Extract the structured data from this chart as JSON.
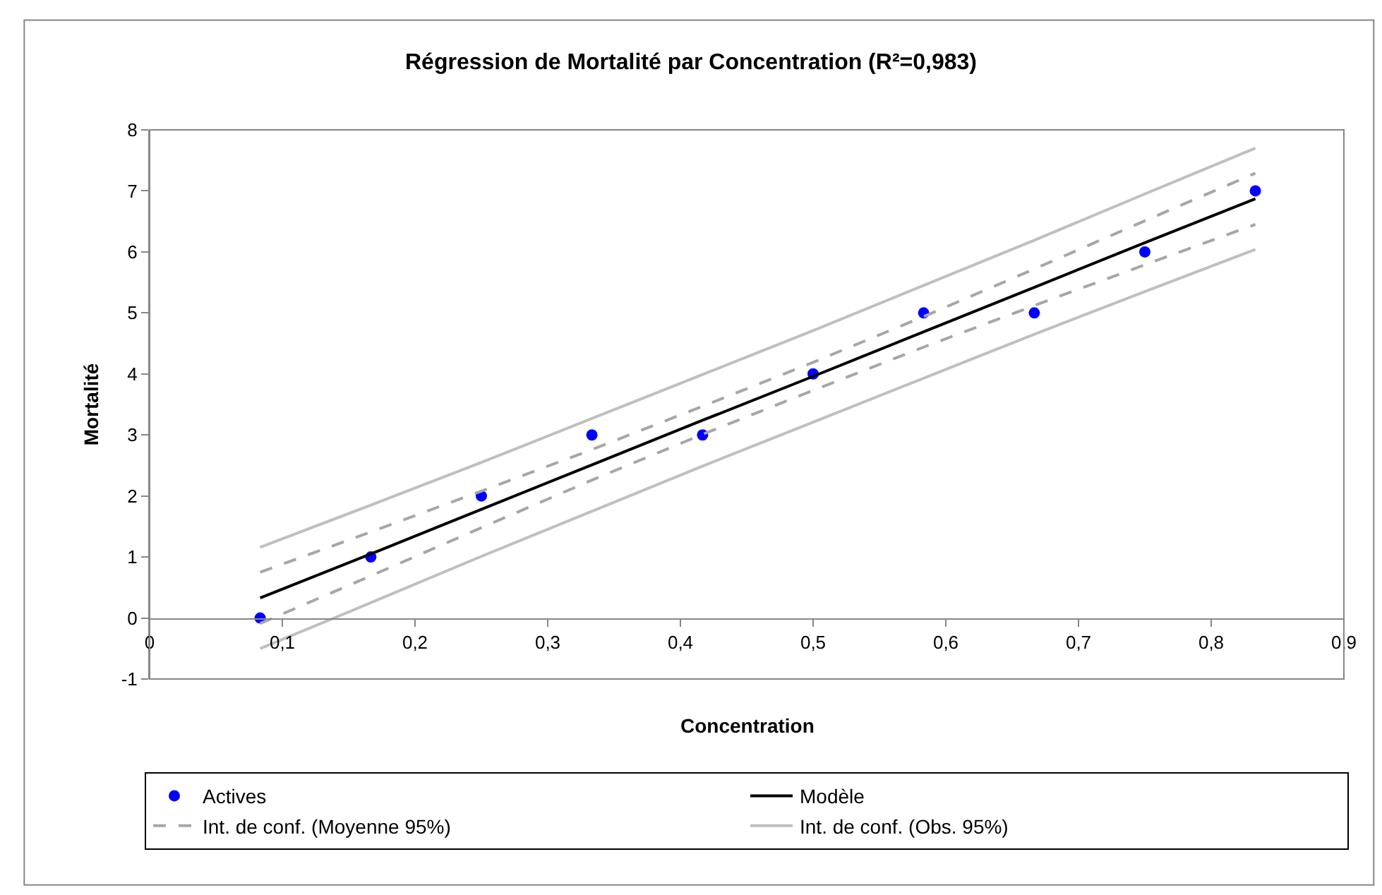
{
  "chart_data": {
    "type": "scatter",
    "title": "Régression de Mortalité par Concentration (R²=0,983)",
    "xlabel": "Concentration",
    "ylabel": "Mortalité",
    "x": [
      0.0833,
      0.1667,
      0.25,
      0.3333,
      0.4167,
      0.5,
      0.5833,
      0.6667,
      0.75,
      0.8333
    ],
    "series": [
      {
        "name": "Actives",
        "marker": "circle",
        "color": "#0000ff",
        "values": [
          0,
          1,
          2,
          3,
          3,
          4,
          5,
          5,
          6,
          7
        ]
      },
      {
        "name": "Modèle",
        "type": "line",
        "line_style": "solid",
        "color": "#000000",
        "values": [
          0.33,
          1.05,
          1.78,
          2.51,
          3.24,
          3.96,
          4.69,
          5.42,
          6.15,
          6.87
        ]
      },
      {
        "name": "Int. de conf. (Moyenne 95%)",
        "type": "line",
        "line_style": "dashed",
        "color": "#a6a6a6",
        "values": [
          0.75,
          1.41,
          2.08,
          2.76,
          3.47,
          4.19,
          4.94,
          5.72,
          6.51,
          7.29
        ]
      },
      {
        "type": "line",
        "line_style": "dashed",
        "color": "#a6a6a6",
        "values": [
          -0.09,
          0.69,
          1.48,
          2.26,
          3.01,
          3.73,
          4.44,
          5.12,
          5.79,
          6.45
        ]
      },
      {
        "name": "Int. de conf. (Obs. 95%)",
        "type": "line",
        "line_style": "solid",
        "color": "#bfbfbf",
        "values": [
          1.16,
          1.85,
          2.55,
          3.27,
          3.99,
          4.71,
          5.45,
          6.19,
          6.95,
          7.7
        ]
      },
      {
        "type": "line",
        "line_style": "solid",
        "color": "#bfbfbf",
        "values": [
          -0.5,
          0.25,
          1.01,
          1.75,
          2.49,
          3.21,
          3.93,
          4.65,
          5.35,
          6.04
        ]
      }
    ],
    "xlim": [
      0,
      0.9
    ],
    "xticks": [
      0,
      {
        "value": 0.1,
        "label": "0,1"
      },
      {
        "value": 0.2,
        "label": "0,2"
      },
      {
        "value": 0.3,
        "label": "0,3"
      },
      {
        "value": 0.4,
        "label": "0,4"
      },
      {
        "value": 0.5,
        "label": "0,5"
      },
      {
        "value": 0.6,
        "label": "0,6"
      },
      {
        "value": 0.7,
        "label": "0,7"
      },
      {
        "value": 0.8,
        "label": "0,8"
      },
      {
        "value": 0.9,
        "label": "0,9"
      }
    ],
    "ylim": [
      -1,
      8
    ],
    "yticks": [
      -1,
      0,
      1,
      2,
      3,
      4,
      5,
      6,
      7,
      8
    ],
    "grid": false,
    "legend": "bottom"
  }
}
